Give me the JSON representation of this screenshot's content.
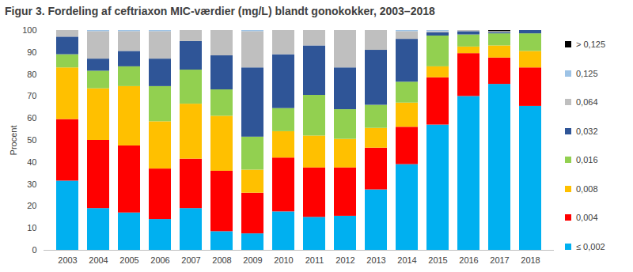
{
  "chart_data": {
    "type": "bar",
    "stacked": true,
    "title": "Figur 3. Fordeling af ceftriaxon MIC-værdier (mg/L) blandt gonokokker, 2003–2018",
    "y_label": "Procent",
    "categories": [
      "2003",
      "2004",
      "2005",
      "2006",
      "2007",
      "2008",
      "2009",
      "2010",
      "2011",
      "2012",
      "2013",
      "2014",
      "2015",
      "2016",
      "2017",
      "2018"
    ],
    "ylim": [
      0,
      100
    ],
    "yticks": [
      0,
      10,
      20,
      30,
      40,
      50,
      60,
      70,
      80,
      90,
      100
    ],
    "grid": false,
    "legend": "right",
    "series": [
      {
        "name": "≤ 0,002",
        "color": "#00b0f0",
        "values": [
          31.5,
          19,
          17,
          14,
          19,
          8.5,
          7.5,
          17.5,
          15,
          15.5,
          27.5,
          39,
          57,
          70,
          75.5,
          65.5
        ]
      },
      {
        "name": "0,004",
        "color": "#ff0000",
        "values": [
          28,
          31,
          30.5,
          23,
          22.5,
          27.5,
          18.5,
          24.5,
          22.5,
          22,
          19,
          17,
          21.5,
          19.5,
          12,
          17.5
        ]
      },
      {
        "name": "0,008",
        "color": "#ffc000",
        "values": [
          23.5,
          23.5,
          27,
          21.5,
          25,
          25,
          10.5,
          12,
          14.5,
          13,
          9,
          11,
          5,
          3,
          5.5,
          7.5
        ]
      },
      {
        "name": "0,016",
        "color": "#92d050",
        "values": [
          6,
          8,
          9,
          16,
          15.5,
          12,
          15,
          10.5,
          18.5,
          13.5,
          10.5,
          9.5,
          14,
          5.5,
          5.5,
          8
        ]
      },
      {
        "name": "0,032",
        "color": "#2f5597",
        "values": [
          8,
          5.5,
          7,
          12.5,
          13,
          15.5,
          31.5,
          24.5,
          22.5,
          19,
          25,
          19.5,
          1.5,
          1.5,
          0.5,
          1.5
        ]
      },
      {
        "name": "0,064",
        "color": "#bfbfbf",
        "values": [
          3,
          12.5,
          9,
          12.5,
          5,
          11.5,
          16.5,
          11,
          7,
          17,
          9,
          3.5,
          0.5,
          0.5,
          0.5,
          0
        ]
      },
      {
        "name": "0,125",
        "color": "#9dc3e6",
        "values": [
          0,
          0.5,
          0.5,
          0.5,
          0,
          0,
          0.5,
          0,
          0,
          0,
          0,
          0.5,
          0.5,
          0,
          0,
          0
        ]
      },
      {
        "name": "> 0,125",
        "color": "#000000",
        "values": [
          0,
          0,
          0,
          0,
          0,
          0,
          0,
          0,
          0,
          0,
          0,
          0,
          0,
          0,
          0.5,
          0
        ]
      }
    ]
  }
}
